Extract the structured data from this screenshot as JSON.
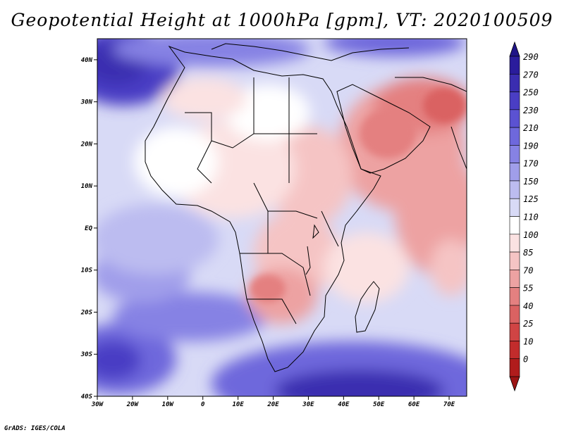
{
  "title": "Geopotential Height at 1000hPa [gpm], VT: 2020100509",
  "credit": "GrADS: IGES/COLA",
  "map": {
    "extent": {
      "lon_min": -30,
      "lon_max": 75,
      "lat_min": -40,
      "lat_max": 45
    },
    "x_ticks": [
      {
        "lon": -30,
        "label": "30W"
      },
      {
        "lon": -20,
        "label": "20W"
      },
      {
        "lon": -10,
        "label": "10W"
      },
      {
        "lon": 0,
        "label": "0"
      },
      {
        "lon": 10,
        "label": "10E"
      },
      {
        "lon": 20,
        "label": "20E"
      },
      {
        "lon": 30,
        "label": "30E"
      },
      {
        "lon": 40,
        "label": "40E"
      },
      {
        "lon": 50,
        "label": "50E"
      },
      {
        "lon": 60,
        "label": "60E"
      },
      {
        "lon": 70,
        "label": "70E"
      }
    ],
    "y_ticks": [
      {
        "lat": 40,
        "label": "40N"
      },
      {
        "lat": 30,
        "label": "30N"
      },
      {
        "lat": 20,
        "label": "20N"
      },
      {
        "lat": 10,
        "label": "10N"
      },
      {
        "lat": 0,
        "label": "EQ"
      },
      {
        "lat": -10,
        "label": "10S"
      },
      {
        "lat": -20,
        "label": "20S"
      },
      {
        "lat": -30,
        "label": "30S"
      },
      {
        "lat": -40,
        "label": "40S"
      }
    ]
  },
  "colorbar": {
    "levels": [
      {
        "label": "290",
        "color": "#2a1c9c"
      },
      {
        "label": "270",
        "color": "#3a2db0"
      },
      {
        "label": "250",
        "color": "#4a3ec4"
      },
      {
        "label": "230",
        "color": "#5b52d2"
      },
      {
        "label": "210",
        "color": "#6e68dc"
      },
      {
        "label": "190",
        "color": "#8682e4"
      },
      {
        "label": "170",
        "color": "#a09eea"
      },
      {
        "label": "150",
        "color": "#bcbcf0"
      },
      {
        "label": "125",
        "color": "#d8daf6"
      },
      {
        "label": "110",
        "color": "#ffffff"
      },
      {
        "label": "100",
        "color": "#fbe2e2"
      },
      {
        "label": "85",
        "color": "#f5c4c4"
      },
      {
        "label": "70",
        "color": "#eda2a2"
      },
      {
        "label": "55",
        "color": "#e48080"
      },
      {
        "label": "40",
        "color": "#da6262"
      },
      {
        "label": "25",
        "color": "#d04444"
      },
      {
        "label": "10",
        "color": "#c22c2c"
      },
      {
        "label": "0",
        "color": "#b01c1c"
      }
    ],
    "top_arrow_color": "#1f1488",
    "bottom_arrow_color": "#9c1414"
  }
}
